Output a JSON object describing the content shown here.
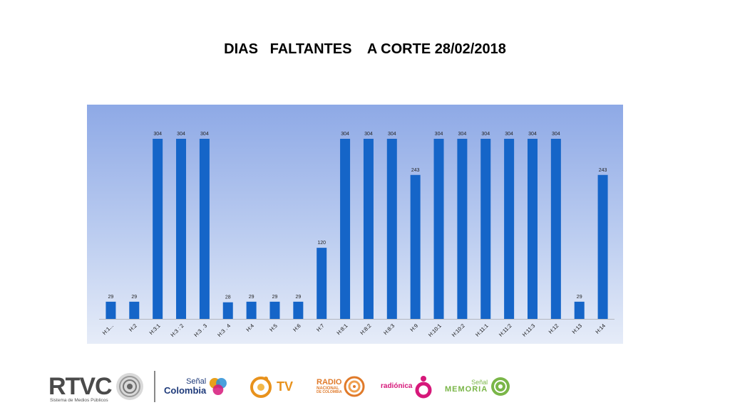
{
  "title": "DIAS   FALTANTES    A CORTE 28/02/2018",
  "chart_data": {
    "type": "bar",
    "categories": [
      "H:1...",
      "H:2",
      "H:3:1",
      "H:3 : 2",
      "H:3 . 3",
      "H:3 . 4",
      "H:4",
      "H:5",
      "H:6",
      "H:7",
      "H:8:1",
      "H:8:2",
      "H:8:3",
      "H:9",
      "H:10:1",
      "H:10:2",
      "H:11:1",
      "H:11:2",
      "H:11:3",
      "H:12",
      "H:13",
      "H:14"
    ],
    "values": [
      29,
      29,
      304,
      304,
      304,
      28,
      29,
      29,
      29,
      120,
      304,
      304,
      304,
      243,
      304,
      304,
      304,
      304,
      304,
      304,
      29,
      243
    ],
    "ylim": [
      0,
      304
    ],
    "grid": false,
    "legend": "none",
    "bar_color": "#1565c8"
  },
  "footer": {
    "rtvc": {
      "name": "RTVC",
      "tagline": "Sistema de Medios Públicos"
    },
    "senal_colombia": {
      "line1": "Señal",
      "line2": "Colombia"
    },
    "tv": {
      "text": "TV"
    },
    "radio_nacional": {
      "line1": "RADIO",
      "line2": "NACIONAL",
      "line3": "DE COLOMBIA"
    },
    "radionica": {
      "text": "radiónica"
    },
    "senal_memoria": {
      "line1": "Señal",
      "line2": "MEMORIA"
    }
  },
  "colors": {
    "bar": "#1565c8",
    "chart_bg_top": "#8ea9e6",
    "chart_bg_bottom": "#e6ecf8",
    "senal_colombia_blue": "#1e3a7a",
    "tv_orange": "#e8921c",
    "radio_orange": "#e07a2a",
    "radionica_pink": "#d6187a",
    "memoria_green": "#7ab648"
  }
}
